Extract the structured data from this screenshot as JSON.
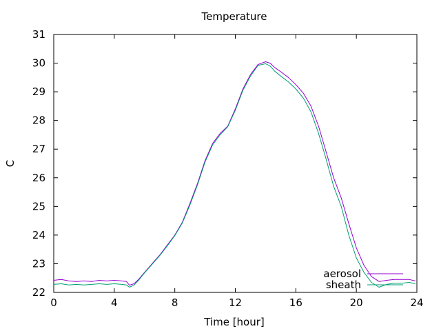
{
  "chart_data": {
    "type": "line",
    "title": "Temperature",
    "xlabel": "Time [hour]",
    "ylabel": "C",
    "xlim": [
      0,
      24
    ],
    "ylim": [
      22,
      31
    ],
    "xticks": [
      0,
      4,
      8,
      12,
      16,
      20,
      24
    ],
    "yticks": [
      22,
      23,
      24,
      25,
      26,
      27,
      28,
      29,
      30,
      31
    ],
    "grid": false,
    "legend_position": "bottom-right",
    "series": [
      {
        "name": "aerosol",
        "color": "#9400d3",
        "x": [
          0,
          0.5,
          1,
          1.5,
          2,
          2.5,
          3,
          3.5,
          4,
          4.5,
          4.8,
          5.0,
          5.3,
          5.6,
          6.0,
          6.5,
          7.0,
          7.5,
          8.0,
          8.5,
          9.0,
          9.5,
          10.0,
          10.5,
          11.0,
          11.5,
          12.0,
          12.5,
          13.0,
          13.5,
          14.0,
          14.3,
          14.6,
          15.0,
          15.5,
          16.0,
          16.5,
          17.0,
          17.5,
          18.0,
          18.5,
          19.0,
          19.5,
          20.0,
          20.5,
          21.0,
          21.5,
          22.0,
          22.5,
          23.0,
          23.5,
          23.9
        ],
        "values": [
          22.42,
          22.45,
          22.4,
          22.38,
          22.4,
          22.38,
          22.42,
          22.4,
          22.42,
          22.4,
          22.38,
          22.25,
          22.3,
          22.45,
          22.7,
          23.0,
          23.3,
          23.65,
          24.0,
          24.45,
          25.1,
          25.8,
          26.6,
          27.2,
          27.55,
          27.8,
          28.4,
          29.1,
          29.6,
          29.95,
          30.05,
          30.0,
          29.85,
          29.7,
          29.5,
          29.25,
          28.95,
          28.5,
          27.8,
          26.9,
          26.0,
          25.3,
          24.4,
          23.55,
          22.95,
          22.55,
          22.38,
          22.42,
          22.45,
          22.45,
          22.45,
          22.4
        ]
      },
      {
        "name": "sheath",
        "color": "#009e73",
        "x": [
          0,
          0.5,
          1,
          1.5,
          2,
          2.5,
          3,
          3.5,
          4,
          4.5,
          4.8,
          5.0,
          5.3,
          5.6,
          6.0,
          6.5,
          7.0,
          7.5,
          8.0,
          8.5,
          9.0,
          9.5,
          10.0,
          10.5,
          11.0,
          11.5,
          12.0,
          12.5,
          13.0,
          13.5,
          14.0,
          14.3,
          14.6,
          15.0,
          15.5,
          16.0,
          16.5,
          17.0,
          17.5,
          18.0,
          18.5,
          19.0,
          19.5,
          20.0,
          20.5,
          21.0,
          21.5,
          22.0,
          22.5,
          23.0,
          23.5,
          23.9
        ],
        "values": [
          22.28,
          22.3,
          22.26,
          22.28,
          22.26,
          22.28,
          22.3,
          22.28,
          22.3,
          22.28,
          22.26,
          22.18,
          22.25,
          22.42,
          22.68,
          22.98,
          23.28,
          23.62,
          23.98,
          24.42,
          25.05,
          25.75,
          26.55,
          27.15,
          27.5,
          27.78,
          28.35,
          29.05,
          29.55,
          29.92,
          29.98,
          29.9,
          29.72,
          29.55,
          29.35,
          29.1,
          28.78,
          28.3,
          27.55,
          26.65,
          25.7,
          25.0,
          24.0,
          23.2,
          22.7,
          22.35,
          22.18,
          22.28,
          22.32,
          22.32,
          22.35,
          22.3
        ]
      }
    ]
  }
}
